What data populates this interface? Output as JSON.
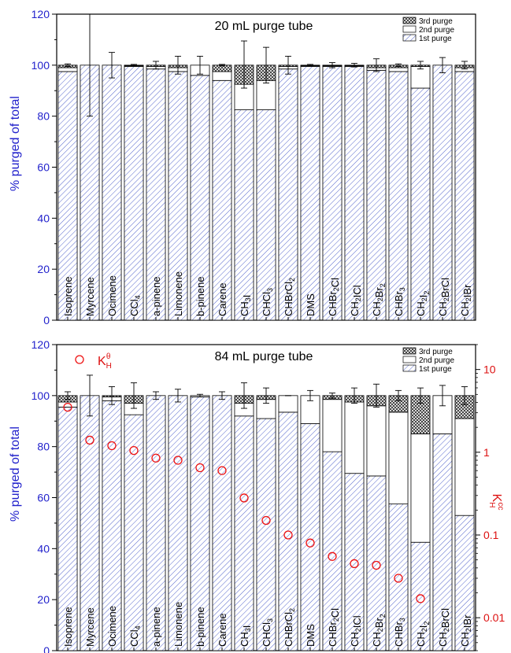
{
  "chart_data": [
    {
      "type": "bar",
      "stacked": true,
      "title": "20 mL purge tube",
      "ylabel": "% purged of total",
      "ylim": [
        0,
        120
      ],
      "yticks": [
        0,
        20,
        40,
        60,
        80,
        100,
        120
      ],
      "categories": [
        "Isoprene",
        "Myrcene",
        "Ocimene",
        "CCl4",
        "a-pinene",
        "Limonene",
        "b-pinene",
        "Carene",
        "CH3I",
        "CHCl3",
        "CHBrCl2",
        "DMS",
        "CHBr2Cl",
        "CH2ICl",
        "CH2Br2",
        "CHBr3",
        "CH2I2",
        "CH2BrCl",
        "CH2IBr"
      ],
      "series": [
        {
          "name": "1st purge",
          "values": [
            97.5,
            100,
            100,
            99.5,
            98.5,
            97.5,
            96,
            94,
            82.5,
            82.5,
            98.5,
            99.5,
            99.5,
            99.5,
            98,
            97.5,
            91,
            100,
            97.5
          ]
        },
        {
          "name": "2nd purge",
          "values": [
            1.5,
            0,
            0,
            0.3,
            1.0,
            1.5,
            4,
            3.5,
            10,
            11.5,
            1.0,
            0.3,
            0.3,
            0.3,
            1.0,
            1.5,
            8.5,
            0,
            1.5
          ]
        },
        {
          "name": "3rd purge",
          "values": [
            1.0,
            0,
            0,
            0.2,
            0.5,
            1.0,
            0,
            2.5,
            7.5,
            6,
            0.5,
            0.2,
            0.2,
            0.2,
            1.0,
            1.0,
            0.5,
            0,
            1.0
          ]
        }
      ],
      "error_top": [
        100.5,
        120,
        105,
        100.3,
        101.5,
        103.5,
        103.5,
        100.3,
        109.5,
        107,
        103.5,
        100.3,
        101,
        100.7,
        102.5,
        100.5,
        101.5,
        103,
        101.5
      ],
      "error_bottom": [
        99.5,
        80,
        95,
        99.7,
        98.5,
        96.5,
        96.5,
        99.7,
        91,
        93,
        96.5,
        99.7,
        99,
        99.3,
        97.5,
        99.5,
        98.5,
        97,
        98.5
      ],
      "legend": [
        "3rd purge",
        "2nd purge",
        "1st purge"
      ],
      "legend_position": "top-right"
    },
    {
      "type": "bar",
      "stacked": true,
      "title": "84 mL purge tube",
      "ylabel": "% purged of total",
      "ylim": [
        0,
        120
      ],
      "yticks": [
        0,
        20,
        40,
        60,
        80,
        100,
        120
      ],
      "y2label": "K",
      "y2scale": "log",
      "y2lim": [
        0.004,
        20
      ],
      "y2ticks": [
        "0.01",
        "0.1",
        "1",
        "10"
      ],
      "categories": [
        "Isoprene",
        "Myrcene",
        "Ocimene",
        "CCl4",
        "a-pinene",
        "Limonene",
        "b-pinene",
        "Carene",
        "CH3I",
        "CHCl3",
        "CHBrCl2",
        "DMS",
        "CHBr2Cl",
        "CH2ICl",
        "CH2Br2",
        "CHBr3",
        "CH2I2",
        "CH2BrCl",
        "CH2IBr"
      ],
      "series": [
        {
          "name": "1st purge",
          "values": [
            95.5,
            100,
            98,
            92.5,
            100,
            100,
            99.5,
            100,
            92,
            91,
            93.5,
            89,
            78,
            69.5,
            68.5,
            57.5,
            42.5,
            85,
            53
          ]
        },
        {
          "name": "2nd purge",
          "values": [
            2.0,
            0,
            1.5,
            4.5,
            0,
            0,
            0.5,
            0,
            5,
            7.5,
            6.5,
            11,
            20.5,
            28,
            27.5,
            36,
            42.5,
            15,
            38
          ]
        },
        {
          "name": "3rd purge",
          "values": [
            2.5,
            0,
            0.5,
            3.0,
            0,
            0,
            0,
            0,
            3,
            1.5,
            0,
            0,
            1.5,
            2.5,
            4,
            6.5,
            15,
            0,
            9
          ]
        }
      ],
      "error_top": [
        101.5,
        108,
        103.5,
        105,
        101.5,
        102.5,
        100.5,
        101.5,
        105,
        103,
        100,
        102,
        101,
        103,
        104.5,
        102,
        103,
        104,
        103.5
      ],
      "error_bottom": [
        98.5,
        92,
        96.5,
        95,
        98.5,
        97.5,
        99.5,
        98.5,
        95,
        97,
        100,
        98,
        99,
        97,
        95.5,
        98,
        97,
        96,
        96.5
      ],
      "kh_series": {
        "name": "K",
        "values": [
          3.5,
          1.4,
          1.2,
          1.05,
          0.85,
          0.8,
          0.65,
          0.6,
          0.28,
          0.15,
          0.1,
          0.08,
          0.055,
          0.045,
          0.043,
          0.03,
          0.017,
          null,
          null
        ]
      },
      "legend": [
        "3rd purge",
        "2nd purge",
        "1st purge"
      ],
      "legend_position": "top-right"
    }
  ],
  "colors": {
    "axis_left": "#2222cc",
    "axis_right": "#dd1111",
    "hatch": "#5566cc",
    "marker": "#ee1111"
  }
}
